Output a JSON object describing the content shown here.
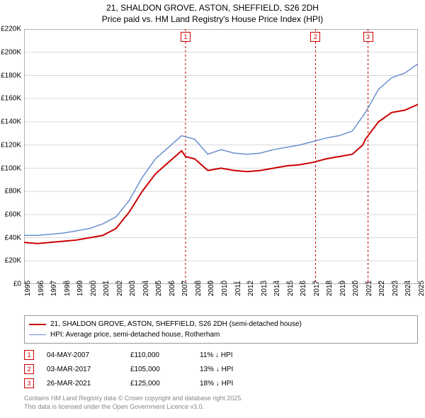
{
  "title": {
    "line1": "21, SHALDON GROVE, ASTON, SHEFFIELD, S26 2DH",
    "line2": "Price paid vs. HM Land Registry's House Price Index (HPI)",
    "fontsize": 12
  },
  "chart": {
    "type": "line",
    "background_color": "#ffffff",
    "grid_color": "#d9d9d9",
    "axis_color": "#666666",
    "ylim": [
      0,
      220
    ],
    "ytick_step": 20,
    "ytick_prefix": "£",
    "ytick_suffix": "K",
    "xlim": [
      1995,
      2025
    ],
    "xtick_step": 1,
    "series": [
      {
        "name": "price_paid",
        "label": "21, SHALDON GROVE, ASTON, SHEFFIELD, S26 2DH (semi-detached house)",
        "color": "#cc0000",
        "line_width": 2,
        "data": [
          [
            1995,
            36
          ],
          [
            1996,
            35
          ],
          [
            1997,
            36
          ],
          [
            1998,
            37
          ],
          [
            1999,
            38
          ],
          [
            2000,
            40
          ],
          [
            2001,
            42
          ],
          [
            2002,
            48
          ],
          [
            2003,
            62
          ],
          [
            2004,
            80
          ],
          [
            2005,
            95
          ],
          [
            2006,
            105
          ],
          [
            2007,
            115
          ],
          [
            2007.3,
            110
          ],
          [
            2008,
            108
          ],
          [
            2009,
            98
          ],
          [
            2010,
            100
          ],
          [
            2011,
            98
          ],
          [
            2012,
            97
          ],
          [
            2013,
            98
          ],
          [
            2014,
            100
          ],
          [
            2015,
            102
          ],
          [
            2016,
            103
          ],
          [
            2017,
            105
          ],
          [
            2018,
            108
          ],
          [
            2019,
            110
          ],
          [
            2020,
            112
          ],
          [
            2020.8,
            120
          ],
          [
            2021,
            125
          ],
          [
            2022,
            140
          ],
          [
            2023,
            148
          ],
          [
            2024,
            150
          ],
          [
            2025,
            155
          ]
        ]
      },
      {
        "name": "hpi",
        "label": "HPI: Average price, semi-detached house, Rotherham",
        "color": "#6a8fd0",
        "line_width": 1.5,
        "data": [
          [
            1995,
            42
          ],
          [
            1996,
            42
          ],
          [
            1997,
            43
          ],
          [
            1998,
            44
          ],
          [
            1999,
            46
          ],
          [
            2000,
            48
          ],
          [
            2001,
            52
          ],
          [
            2002,
            58
          ],
          [
            2003,
            72
          ],
          [
            2004,
            92
          ],
          [
            2005,
            108
          ],
          [
            2006,
            118
          ],
          [
            2007,
            128
          ],
          [
            2008,
            125
          ],
          [
            2009,
            112
          ],
          [
            2010,
            116
          ],
          [
            2011,
            113
          ],
          [
            2012,
            112
          ],
          [
            2013,
            113
          ],
          [
            2014,
            116
          ],
          [
            2015,
            118
          ],
          [
            2016,
            120
          ],
          [
            2017,
            123
          ],
          [
            2018,
            126
          ],
          [
            2019,
            128
          ],
          [
            2020,
            132
          ],
          [
            2021,
            148
          ],
          [
            2022,
            168
          ],
          [
            2023,
            178
          ],
          [
            2024,
            182
          ],
          [
            2025,
            190
          ]
        ]
      }
    ],
    "markers": [
      {
        "id": "1",
        "x": 2007.3,
        "dash_color": "#cc0000"
      },
      {
        "id": "2",
        "x": 2017.2,
        "dash_color": "#cc0000"
      },
      {
        "id": "3",
        "x": 2021.2,
        "dash_color": "#cc0000"
      }
    ]
  },
  "legend": {
    "items": [
      {
        "color": "#cc0000",
        "width": 2,
        "text_key": "chart.series.0.label"
      },
      {
        "color": "#6a8fd0",
        "width": 1.5,
        "text_key": "chart.series.1.label"
      }
    ]
  },
  "events": [
    {
      "id": "1",
      "date": "04-MAY-2007",
      "price": "£110,000",
      "hpi": "11% ↓ HPI"
    },
    {
      "id": "2",
      "date": "03-MAR-2017",
      "price": "£105,000",
      "hpi": "13% ↓ HPI"
    },
    {
      "id": "3",
      "date": "26-MAR-2021",
      "price": "£125,000",
      "hpi": "18% ↓ HPI"
    }
  ],
  "footer": {
    "line1": "Contains HM Land Registry data © Crown copyright and database right 2025.",
    "line2": "This data is licensed under the Open Government Licence v3.0."
  }
}
